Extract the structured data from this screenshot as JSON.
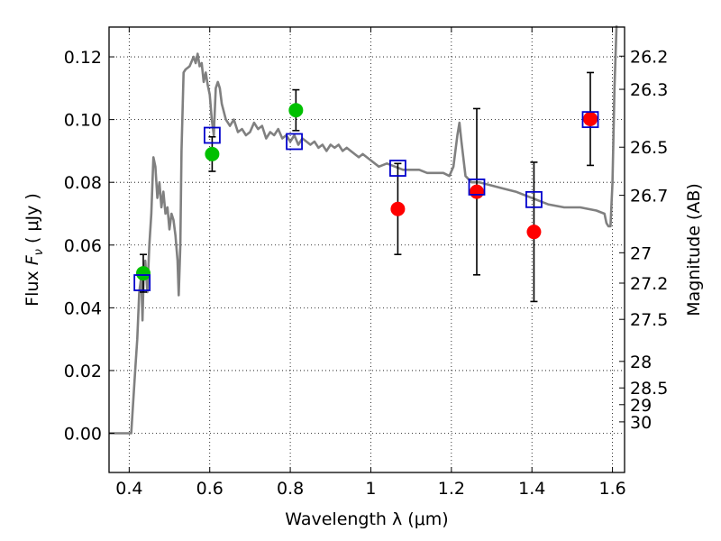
{
  "chart_data": {
    "type": "scatter",
    "xlabel": "Wavelength  λ (μm)",
    "ylabel": "Flux  F_ν ( μJy )",
    "ylabel_parts": {
      "prefix": "Flux  ",
      "symbol": "F",
      "subscript": "ν",
      "suffix": "  ( μJy )"
    },
    "y2label": "Magnitude (AB)",
    "xlim": [
      0.35,
      1.63
    ],
    "ylim": [
      -0.0125,
      0.1295
    ],
    "grid": true,
    "x_ticks": [
      0.4,
      0.6,
      0.8,
      1.0,
      1.2,
      1.4,
      1.6
    ],
    "x_tick_labels": [
      "0.4",
      "0.6",
      "0.8",
      "1",
      "1.2",
      "1.4",
      "1.6"
    ],
    "y_ticks": [
      0.0,
      0.02,
      0.04,
      0.06,
      0.08,
      0.1,
      0.12
    ],
    "y_tick_labels": [
      "0.00",
      "0.02",
      "0.04",
      "0.06",
      "0.08",
      "0.10",
      "0.12"
    ],
    "y2_ticks": [
      {
        "label": "26.2",
        "mag": 26.2
      },
      {
        "label": "26.3",
        "mag": 26.3
      },
      {
        "label": "26.5",
        "mag": 26.5
      },
      {
        "label": "26.7",
        "mag": 26.7
      },
      {
        "label": "27",
        "mag": 27.0
      },
      {
        "label": "27.2",
        "mag": 27.2
      },
      {
        "label": "27.5",
        "mag": 27.5
      },
      {
        "label": "28",
        "mag": 28.0
      },
      {
        "label": "28.5",
        "mag": 28.5
      },
      {
        "label": "29",
        "mag": 29.0
      },
      {
        "label": "30",
        "mag": 30.0
      }
    ],
    "model_spectrum": {
      "color": "#808080",
      "x": [
        0.35,
        0.375,
        0.38,
        0.39,
        0.4,
        0.405,
        0.41,
        0.415,
        0.42,
        0.425,
        0.43,
        0.433,
        0.436,
        0.44,
        0.445,
        0.45,
        0.455,
        0.46,
        0.465,
        0.47,
        0.475,
        0.48,
        0.485,
        0.49,
        0.495,
        0.5,
        0.505,
        0.51,
        0.515,
        0.52,
        0.523,
        0.527,
        0.53,
        0.535,
        0.54,
        0.55,
        0.56,
        0.565,
        0.57,
        0.575,
        0.58,
        0.585,
        0.59,
        0.595,
        0.6,
        0.605,
        0.61,
        0.615,
        0.62,
        0.625,
        0.63,
        0.64,
        0.65,
        0.66,
        0.67,
        0.68,
        0.69,
        0.7,
        0.71,
        0.72,
        0.73,
        0.74,
        0.75,
        0.76,
        0.77,
        0.78,
        0.79,
        0.8,
        0.81,
        0.82,
        0.83,
        0.84,
        0.85,
        0.86,
        0.87,
        0.88,
        0.89,
        0.9,
        0.91,
        0.92,
        0.93,
        0.94,
        0.95,
        0.96,
        0.97,
        0.98,
        0.99,
        1.0,
        1.02,
        1.04,
        1.06,
        1.08,
        1.1,
        1.12,
        1.14,
        1.16,
        1.18,
        1.195,
        1.205,
        1.215,
        1.22,
        1.225,
        1.235,
        1.25,
        1.27,
        1.3,
        1.33,
        1.36,
        1.4,
        1.44,
        1.48,
        1.52,
        1.56,
        1.58,
        1.585,
        1.59,
        1.595,
        1.6,
        1.605,
        1.61
      ],
      "y": [
        0.0,
        0.0,
        0.0,
        0.0,
        0.0,
        0.0,
        0.01,
        0.02,
        0.03,
        0.045,
        0.05,
        0.036,
        0.05,
        0.055,
        0.045,
        0.06,
        0.07,
        0.088,
        0.085,
        0.075,
        0.08,
        0.072,
        0.077,
        0.07,
        0.072,
        0.065,
        0.07,
        0.068,
        0.063,
        0.055,
        0.044,
        0.06,
        0.09,
        0.115,
        0.116,
        0.117,
        0.12,
        0.118,
        0.121,
        0.117,
        0.118,
        0.112,
        0.115,
        0.111,
        0.108,
        0.1,
        0.095,
        0.11,
        0.112,
        0.11,
        0.105,
        0.1,
        0.098,
        0.1,
        0.096,
        0.097,
        0.095,
        0.096,
        0.099,
        0.097,
        0.098,
        0.094,
        0.096,
        0.095,
        0.097,
        0.094,
        0.095,
        0.093,
        0.095,
        0.092,
        0.094,
        0.093,
        0.092,
        0.093,
        0.091,
        0.092,
        0.09,
        0.092,
        0.091,
        0.092,
        0.09,
        0.091,
        0.09,
        0.089,
        0.088,
        0.089,
        0.088,
        0.087,
        0.085,
        0.086,
        0.085,
        0.084,
        0.084,
        0.084,
        0.083,
        0.083,
        0.083,
        0.082,
        0.085,
        0.095,
        0.099,
        0.093,
        0.082,
        0.08,
        0.08,
        0.079,
        0.078,
        0.077,
        0.075,
        0.073,
        0.072,
        0.072,
        0.071,
        0.07,
        0.067,
        0.066,
        0.066,
        0.08,
        0.11,
        0.13
      ]
    },
    "series": [
      {
        "name": "green",
        "color": "#00c000",
        "points": [
          {
            "x": 0.435,
            "y": 0.051,
            "err": 0.006
          },
          {
            "x": 0.606,
            "y": 0.089,
            "err": 0.0055
          },
          {
            "x": 0.814,
            "y": 0.103,
            "err": 0.0065
          }
        ]
      },
      {
        "name": "red",
        "color": "#ff0000",
        "points": [
          {
            "x": 1.067,
            "y": 0.0715,
            "err": 0.0145
          },
          {
            "x": 1.263,
            "y": 0.077,
            "err": 0.0265
          },
          {
            "x": 1.405,
            "y": 0.0642,
            "err": 0.0222
          },
          {
            "x": 1.545,
            "y": 0.1002,
            "err": 0.0148
          }
        ]
      },
      {
        "name": "model-squares",
        "color": "#0000cc",
        "points": [
          {
            "x": 0.432,
            "y": 0.048
          },
          {
            "x": 0.606,
            "y": 0.095
          },
          {
            "x": 0.81,
            "y": 0.093
          },
          {
            "x": 1.067,
            "y": 0.0845
          },
          {
            "x": 1.263,
            "y": 0.0785
          },
          {
            "x": 1.405,
            "y": 0.0745
          },
          {
            "x": 1.545,
            "y": 0.1
          }
        ]
      }
    ]
  }
}
